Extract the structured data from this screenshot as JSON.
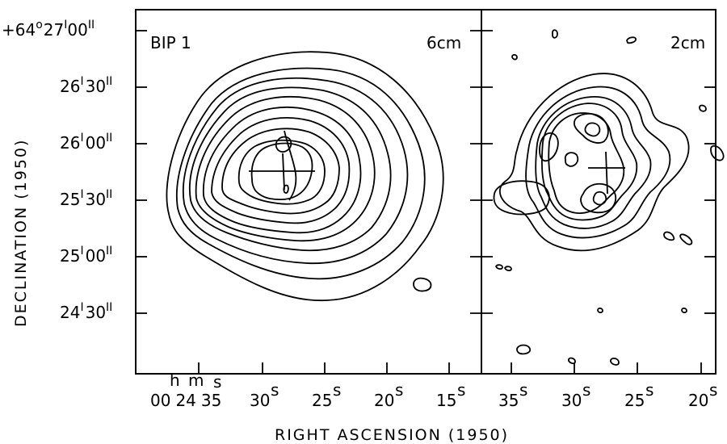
{
  "left_panel": {
    "name": "BIP 1",
    "band": "6cm"
  },
  "right_panel": {
    "band": "2cm"
  },
  "y_axis": {
    "label": "DECLINATION (1950)",
    "ticks": [
      {
        "deg_prefix": "+64",
        "deg_sup": "o",
        "min": "27",
        "min_sup": "I",
        "sec": "00",
        "sec_sup": "II"
      },
      {
        "min": "26",
        "min_sup": "I",
        "sec": "30",
        "sec_sup": "II"
      },
      {
        "min": "26",
        "min_sup": "I",
        "sec": "00",
        "sec_sup": "II"
      },
      {
        "min": "25",
        "min_sup": "I",
        "sec": "30",
        "sec_sup": "II"
      },
      {
        "min": "25",
        "min_sup": "I",
        "sec": "00",
        "sec_sup": "II"
      },
      {
        "min": "24",
        "min_sup": "I",
        "sec": "30",
        "sec_sup": "II"
      }
    ]
  },
  "x_axis": {
    "label": "RIGHT ASCENSION (1950)",
    "units": {
      "h": "h",
      "m": "m",
      "s": "s"
    },
    "left_ticks": [
      {
        "h": "00",
        "m": "24",
        "s": "35"
      },
      {
        "s": "30"
      },
      {
        "s": "25"
      },
      {
        "s": "20"
      },
      {
        "s": "15"
      }
    ],
    "right_ticks": [
      {
        "s": "35"
      },
      {
        "s": "30"
      },
      {
        "s": "25"
      },
      {
        "s": "20"
      }
    ]
  }
}
